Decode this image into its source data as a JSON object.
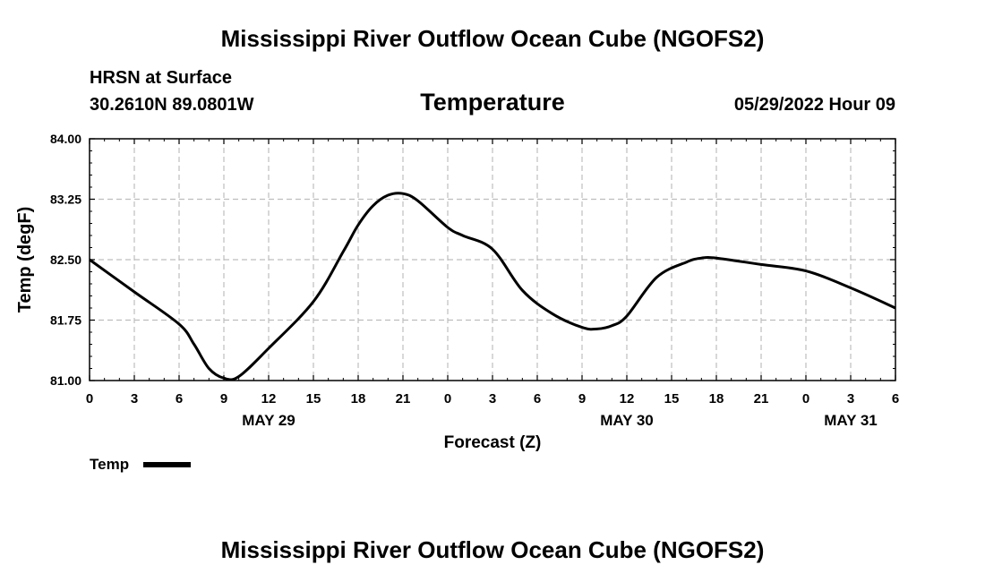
{
  "page": {
    "title": "Mississippi River Outflow Ocean Cube (NGOFS2)",
    "footer_title": "Mississippi River Outflow Ocean Cube (NGOFS2)",
    "station": "HRSN at Surface",
    "coords": "30.2610N  89.0801W",
    "timestamp": "05/29/2022 Hour 09"
  },
  "chart_data": {
    "type": "line",
    "title": "Temperature",
    "xlabel": "Forecast (Z)",
    "ylabel": "Temp (degF)",
    "ylim": [
      81.0,
      84.0
    ],
    "xlim": [
      0,
      54
    ],
    "y_ticks": [
      "81.00",
      "81.75",
      "82.50",
      "83.25",
      "84.00"
    ],
    "y_tick_values": [
      81.0,
      81.75,
      82.5,
      83.25,
      84.0
    ],
    "x_ticks": [
      "0",
      "3",
      "6",
      "9",
      "12",
      "15",
      "18",
      "21",
      "0",
      "3",
      "6",
      "9",
      "12",
      "15",
      "18",
      "21",
      "0",
      "3",
      "6"
    ],
    "x_tick_hours": [
      0,
      3,
      6,
      9,
      12,
      15,
      18,
      21,
      24,
      27,
      30,
      33,
      36,
      39,
      42,
      45,
      48,
      51,
      54
    ],
    "date_labels": [
      {
        "label": "MAY 29",
        "hour": 12
      },
      {
        "label": "MAY 30",
        "hour": 36
      },
      {
        "label": "MAY 31",
        "hour": 51
      }
    ],
    "grid": true,
    "legend": {
      "label": "Temp",
      "position": "bottom-left"
    },
    "series": [
      {
        "name": "Temp",
        "color": "#000000",
        "x": [
          0,
          3,
          6,
          7,
          8,
          9,
          10,
          12,
          15,
          17,
          18,
          19,
          20,
          21,
          22,
          24,
          25,
          27,
          29,
          31,
          33,
          34,
          35,
          36,
          38,
          40,
          41,
          42,
          45,
          48,
          51,
          54
        ],
        "y": [
          82.5,
          82.1,
          81.7,
          81.45,
          81.15,
          81.03,
          81.05,
          81.4,
          81.98,
          82.6,
          82.93,
          83.17,
          83.3,
          83.32,
          83.23,
          82.9,
          82.8,
          82.63,
          82.12,
          81.83,
          81.66,
          81.64,
          81.68,
          81.8,
          82.28,
          82.47,
          82.52,
          82.52,
          82.44,
          82.36,
          82.15,
          81.9
        ]
      }
    ]
  }
}
